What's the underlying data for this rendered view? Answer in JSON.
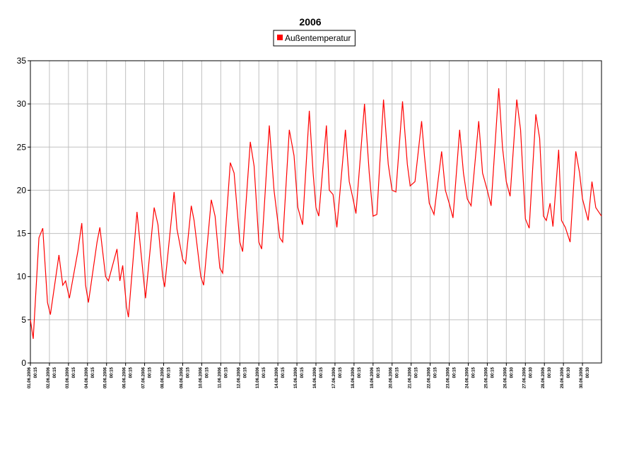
{
  "chart_data": {
    "type": "line",
    "title": "2006",
    "x": [
      0,
      0.15,
      0.45,
      0.65,
      0.9,
      1.05,
      1.5,
      1.7,
      1.85,
      2.05,
      2.5,
      2.7,
      2.9,
      3.05,
      3.5,
      3.65,
      3.95,
      4.1,
      4.55,
      4.7,
      4.85,
      5.05,
      5.15,
      5.6,
      5.8,
      6.05,
      6.5,
      6.7,
      6.95,
      7.05,
      7.55,
      7.7,
      8,
      8.15,
      8.45,
      8.6,
      8.95,
      9.1,
      9.5,
      9.7,
      9.95,
      10.1,
      10.5,
      10.7,
      11,
      11.15,
      11.55,
      11.75,
      12,
      12.15,
      12.55,
      12.8,
      13.1,
      13.25,
      13.6,
      13.85,
      14.05,
      14.3,
      14.65,
      14.85,
      15,
      15.15,
      15.55,
      15.7,
      15.9,
      16.1,
      16.55,
      16.75,
      16.95,
      17.1,
      17.55,
      17.8,
      18,
      18.2,
      18.55,
      18.8,
      19,
      19.2,
      19.55,
      19.8,
      19.95,
      20.2,
      20.55,
      20.7,
      20.95,
      21.2,
      21.6,
      21.8,
      22,
      22.2,
      22.55,
      22.75,
      22.95,
      23.15,
      23.55,
      23.75,
      24,
      24.2,
      24.6,
      24.8,
      25,
      25.2,
      25.55,
      25.75,
      26,
      26.2,
      26.55,
      26.75,
      26.95,
      27.1,
      27.3,
      27.45,
      27.75,
      27.9,
      28.1,
      28.35,
      28.65,
      28.85,
      29,
      29.3,
      29.5,
      29.7,
      30
    ],
    "series": [
      {
        "name": "Außentemperatur",
        "color": "#ff0000",
        "values": [
          5,
          2.8,
          14.5,
          15.6,
          7,
          5.6,
          12.5,
          9,
          9.5,
          7.5,
          13,
          16.2,
          9,
          7,
          14,
          15.7,
          10,
          9.5,
          13.2,
          9.5,
          11.3,
          6.5,
          5.3,
          17.5,
          13,
          7.5,
          18,
          16,
          10,
          8.8,
          19.8,
          15.5,
          12,
          11.5,
          18.2,
          16.5,
          10,
          9,
          18.9,
          17,
          11,
          10.4,
          23.2,
          22,
          14,
          12.9,
          25.6,
          22.8,
          14,
          13.2,
          27.5,
          20,
          14.5,
          14,
          27,
          24,
          18,
          16,
          29.2,
          22,
          18,
          17,
          27.5,
          20,
          19.5,
          15.7,
          27,
          21,
          19,
          17.3,
          30,
          22,
          17,
          17.2,
          30.5,
          23,
          20,
          19.8,
          30.3,
          23,
          20.5,
          21,
          28,
          24,
          18.5,
          17.2,
          24.5,
          20,
          18.5,
          16.8,
          27,
          22,
          19,
          18.2,
          28,
          22,
          20,
          18.2,
          31.8,
          25,
          21,
          19.3,
          30.5,
          27,
          16.7,
          15.6,
          28.8,
          26,
          17,
          16.5,
          18.5,
          15.8,
          24.7,
          16.5,
          15.7,
          14,
          24.5,
          22,
          19,
          16.5,
          21,
          18,
          17
        ]
      }
    ],
    "xlim": [
      0,
      30
    ],
    "xticks": [
      {
        "value": 0,
        "label": "01.06.2006 00:15"
      },
      {
        "value": 1,
        "label": "02.06.2006 00:15"
      },
      {
        "value": 2,
        "label": "03.06.2006 00:15"
      },
      {
        "value": 3,
        "label": "04.06.2006 00:15"
      },
      {
        "value": 4,
        "label": "05.06.2006 00:15"
      },
      {
        "value": 5,
        "label": "06.06.2006 00:15"
      },
      {
        "value": 6,
        "label": "07.06.2006 00:15"
      },
      {
        "value": 7,
        "label": "08.06.2006 00:15"
      },
      {
        "value": 8,
        "label": "09.06.2006 00:15"
      },
      {
        "value": 9,
        "label": "10.06.2006 00:15"
      },
      {
        "value": 10,
        "label": "11.06.2006 00:15"
      },
      {
        "value": 11,
        "label": "12.06.2006 00:15"
      },
      {
        "value": 12,
        "label": "13.06.2006 00:15"
      },
      {
        "value": 13,
        "label": "14.06.2006 00:15"
      },
      {
        "value": 14,
        "label": "15.06.2006 00:15"
      },
      {
        "value": 15,
        "label": "16.06.2006 00:15"
      },
      {
        "value": 16,
        "label": "17.06.2006 00:15"
      },
      {
        "value": 17,
        "label": "18.06.2006 00:15"
      },
      {
        "value": 18,
        "label": "19.06.2006 00:15"
      },
      {
        "value": 19,
        "label": "20.06.2006 00:15"
      },
      {
        "value": 20,
        "label": "21.06.2006 00:15"
      },
      {
        "value": 21,
        "label": "22.06.2006 00:15"
      },
      {
        "value": 22,
        "label": "23.06.2006 00:15"
      },
      {
        "value": 23,
        "label": "24.06.2006 00:15"
      },
      {
        "value": 24,
        "label": "25.06.2006 00:15"
      },
      {
        "value": 25,
        "label": "26.06.2006 00:30"
      },
      {
        "value": 26,
        "label": "27.06.2006 00:30"
      },
      {
        "value": 27,
        "label": "28.06.2006 00:30"
      },
      {
        "value": 28,
        "label": "29.06.2006 00:30"
      },
      {
        "value": 29,
        "label": "30.06.2006 00:30"
      }
    ],
    "ylim": [
      0,
      35
    ],
    "yticks": [
      0,
      5,
      10,
      15,
      20,
      25,
      30,
      35
    ],
    "grid": true,
    "legend": "top"
  }
}
